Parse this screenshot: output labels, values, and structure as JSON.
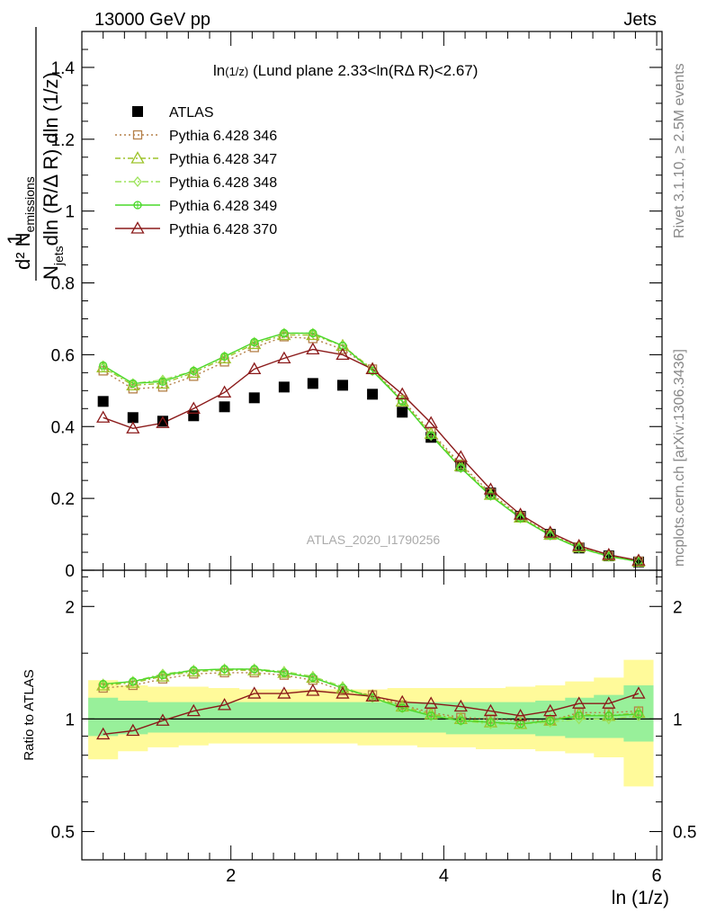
{
  "header": {
    "left": "13000 GeV pp",
    "right": "Jets"
  },
  "side_labels": {
    "rivet": "Rivet 3.1.10, ≥ 2.5M events",
    "mcplots": "mcplots.cern.ch [arXiv:1306.3436]"
  },
  "chart_data": [
    {
      "type": "scatter",
      "title_func": "ln",
      "title_arg": "(1/z)",
      "title_rest": " (Lund plane 2.33<ln(RΔ R)<2.67)",
      "ylabel": {
        "numerator": "1",
        "frac_num": "d² N",
        "frac_num_sub": "emissions",
        "frac_den": "N",
        "frac_den_sub": "jets",
        "frac_den_rest": "dln (R/Δ R) dln (1/z)"
      },
      "watermark": "ATLAS_2020_I1790256",
      "xlim": [
        0.6,
        6.05
      ],
      "ylim": [
        0,
        1.5
      ],
      "yticks": [
        0,
        0.2,
        0.4,
        0.6,
        0.8,
        1,
        1.2,
        1.4
      ],
      "ytick_labels": [
        "0",
        "0.2",
        "0.4",
        "0.6",
        "0.8",
        "1",
        "1.2",
        "1.4"
      ],
      "legend_position": "top-left",
      "x": [
        0.8,
        1.08,
        1.36,
        1.65,
        1.94,
        2.22,
        2.5,
        2.77,
        3.05,
        3.33,
        3.61,
        3.88,
        4.16,
        4.44,
        4.72,
        5.0,
        5.27,
        5.55,
        5.83
      ],
      "series": [
        {
          "name": "ATLAS",
          "marker": "square",
          "color": "#000000",
          "dash": "none",
          "values": [
            0.47,
            0.425,
            0.415,
            0.43,
            0.455,
            0.48,
            0.51,
            0.52,
            0.515,
            0.49,
            0.44,
            0.37,
            0.29,
            0.215,
            0.15,
            0.1,
            0.062,
            0.04,
            0.023
          ]
        },
        {
          "name": "Pythia 6.428 346",
          "marker": "open-square",
          "color": "#b5814a",
          "dash": "2,3",
          "values": [
            0.555,
            0.505,
            0.51,
            0.54,
            0.58,
            0.62,
            0.65,
            0.645,
            0.615,
            0.56,
            0.475,
            0.385,
            0.295,
            0.215,
            0.15,
            0.1,
            0.065,
            0.04,
            0.025
          ]
        },
        {
          "name": "Pythia 6.428 347",
          "marker": "open-triangle",
          "color": "#9dc32a",
          "dash": "6,3,2,3",
          "values": [
            0.565,
            0.515,
            0.52,
            0.55,
            0.59,
            0.63,
            0.655,
            0.655,
            0.625,
            0.56,
            0.47,
            0.38,
            0.29,
            0.21,
            0.147,
            0.099,
            0.064,
            0.04,
            0.024
          ]
        },
        {
          "name": "Pythia 6.428 348",
          "marker": "open-diamond",
          "color": "#9ce35a",
          "dash": "7,3,2,3",
          "values": [
            0.565,
            0.52,
            0.53,
            0.555,
            0.595,
            0.635,
            0.66,
            0.66,
            0.625,
            0.555,
            0.47,
            0.375,
            0.285,
            0.208,
            0.145,
            0.097,
            0.062,
            0.038,
            0.024
          ]
        },
        {
          "name": "Pythia 6.428 349",
          "marker": "open-circle",
          "color": "#4ad82a",
          "dash": "none",
          "values": [
            0.57,
            0.52,
            0.525,
            0.555,
            0.595,
            0.635,
            0.66,
            0.66,
            0.625,
            0.555,
            0.47,
            0.375,
            0.285,
            0.207,
            0.145,
            0.097,
            0.062,
            0.039,
            0.024
          ]
        },
        {
          "name": "Pythia 6.428 370",
          "marker": "open-triangle",
          "color": "#8b1a1a",
          "dash": "none",
          "values": [
            0.425,
            0.395,
            0.41,
            0.45,
            0.495,
            0.56,
            0.59,
            0.615,
            0.6,
            0.56,
            0.49,
            0.41,
            0.315,
            0.225,
            0.155,
            0.105,
            0.068,
            0.043,
            0.027
          ]
        }
      ]
    },
    {
      "type": "line",
      "ylabel": "Ratio to ATLAS",
      "xlabel_func": "ln",
      "xlabel_rest": " (1/z)",
      "ylog": true,
      "ylim": [
        0.42,
        2.5
      ],
      "yticks": [
        0.5,
        1,
        2
      ],
      "ytick_labels": [
        "0.5",
        "1",
        "2"
      ],
      "xlim": [
        0.6,
        6.05
      ],
      "xticks": [
        2,
        4,
        6
      ],
      "xtick_labels": [
        "2",
        "4",
        "6"
      ],
      "band_edges": [
        0.66,
        0.94,
        1.22,
        1.51,
        1.79,
        2.08,
        2.36,
        2.63,
        2.91,
        3.19,
        3.47,
        3.75,
        4.02,
        4.3,
        4.58,
        4.86,
        5.14,
        5.41,
        5.69,
        5.97
      ],
      "band_yellow": {
        "lower": [
          0.78,
          0.82,
          0.84,
          0.85,
          0.86,
          0.86,
          0.86,
          0.86,
          0.86,
          0.85,
          0.85,
          0.84,
          0.84,
          0.83,
          0.83,
          0.82,
          0.81,
          0.79,
          0.66
        ],
        "upper": [
          1.27,
          1.23,
          1.22,
          1.22,
          1.21,
          1.2,
          1.2,
          1.2,
          1.2,
          1.2,
          1.21,
          1.21,
          1.21,
          1.21,
          1.22,
          1.23,
          1.26,
          1.29,
          1.44
        ]
      },
      "band_green": {
        "lower": [
          0.9,
          0.91,
          0.92,
          0.92,
          0.92,
          0.92,
          0.92,
          0.92,
          0.92,
          0.92,
          0.92,
          0.92,
          0.91,
          0.91,
          0.91,
          0.9,
          0.89,
          0.89,
          0.87
        ],
        "upper": [
          1.14,
          1.12,
          1.11,
          1.11,
          1.11,
          1.11,
          1.11,
          1.11,
          1.11,
          1.11,
          1.11,
          1.11,
          1.11,
          1.11,
          1.11,
          1.12,
          1.14,
          1.16,
          1.23
        ]
      },
      "x": [
        0.8,
        1.08,
        1.36,
        1.65,
        1.94,
        2.22,
        2.5,
        2.77,
        3.05,
        3.33,
        3.61,
        3.88,
        4.16,
        4.44,
        4.72,
        5.0,
        5.27,
        5.55,
        5.83
      ],
      "series": [
        {
          "name": "Pythia 6.428 346",
          "marker": "open-square",
          "color": "#b5814a",
          "dash": "2,3",
          "values": [
            1.21,
            1.23,
            1.28,
            1.32,
            1.33,
            1.33,
            1.31,
            1.27,
            1.19,
            1.16,
            1.09,
            1.04,
            1.01,
            1.0,
            0.99,
            0.99,
            1.04,
            1.04,
            1.05
          ]
        },
        {
          "name": "Pythia 6.428 347",
          "marker": "open-triangle",
          "color": "#9dc32a",
          "dash": "6,3,2,3",
          "values": [
            1.23,
            1.25,
            1.3,
            1.34,
            1.35,
            1.35,
            1.33,
            1.29,
            1.21,
            1.15,
            1.08,
            1.03,
            1.0,
            0.98,
            0.97,
            0.99,
            1.03,
            1.02,
            1.04
          ]
        },
        {
          "name": "Pythia 6.428 348",
          "marker": "open-diamond",
          "color": "#9ce35a",
          "dash": "7,3,2,3",
          "values": [
            1.24,
            1.26,
            1.32,
            1.35,
            1.36,
            1.36,
            1.34,
            1.3,
            1.22,
            1.14,
            1.07,
            1.02,
            0.99,
            0.97,
            0.97,
            0.98,
            1.0,
            1.0,
            1.02
          ]
        },
        {
          "name": "Pythia 6.428 349",
          "marker": "open-circle",
          "color": "#4ad82a",
          "dash": "none",
          "values": [
            1.24,
            1.26,
            1.31,
            1.35,
            1.36,
            1.36,
            1.33,
            1.29,
            1.21,
            1.14,
            1.07,
            1.02,
            0.99,
            0.98,
            0.97,
            0.99,
            1.02,
            1.02,
            1.03
          ]
        },
        {
          "name": "Pythia 6.428 370",
          "marker": "open-triangle",
          "color": "#8b1a1a",
          "dash": "none",
          "values": [
            0.91,
            0.93,
            0.99,
            1.05,
            1.09,
            1.17,
            1.17,
            1.19,
            1.17,
            1.15,
            1.11,
            1.1,
            1.08,
            1.05,
            1.02,
            1.05,
            1.1,
            1.1,
            1.17
          ]
        }
      ]
    }
  ]
}
